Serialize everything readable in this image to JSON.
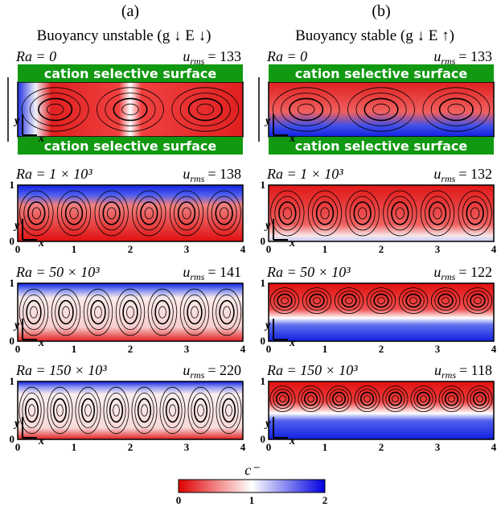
{
  "columns": [
    {
      "label": "(a)",
      "title": "Buoyancy unstable (g ↓ E ↓)",
      "panels": [
        {
          "ra": "Ra = 0",
          "urms_value": "= 133"
        },
        {
          "ra": "Ra = 1 × 10³",
          "urms_value": "= 138"
        },
        {
          "ra": "Ra = 50 × 10³",
          "urms_value": "= 141"
        },
        {
          "ra": "Ra = 150 × 10³",
          "urms_value": "= 220"
        }
      ]
    },
    {
      "label": "(b)",
      "title": "Buoyancy stable (g ↓ E ↑)",
      "panels": [
        {
          "ra": "Ra = 0",
          "urms_value": "= 133"
        },
        {
          "ra": "Ra = 1 × 10³",
          "urms_value": "= 132"
        },
        {
          "ra": "Ra = 50 × 10³",
          "urms_value": "= 122"
        },
        {
          "ra": "Ra = 150 × 10³",
          "urms_value": "= 118"
        }
      ]
    }
  ],
  "urms_symbol": "u",
  "urms_sub": "rms",
  "surface_label": "cation selective surface",
  "axes": {
    "x_label": "x",
    "y_label": "y",
    "x_ticks": [
      "0",
      "1",
      "2",
      "3",
      "4"
    ],
    "y_ticks": [
      "0",
      "1"
    ]
  },
  "colorbar": {
    "label": "c⁻",
    "ticks": [
      "0",
      "1",
      "2"
    ]
  }
}
